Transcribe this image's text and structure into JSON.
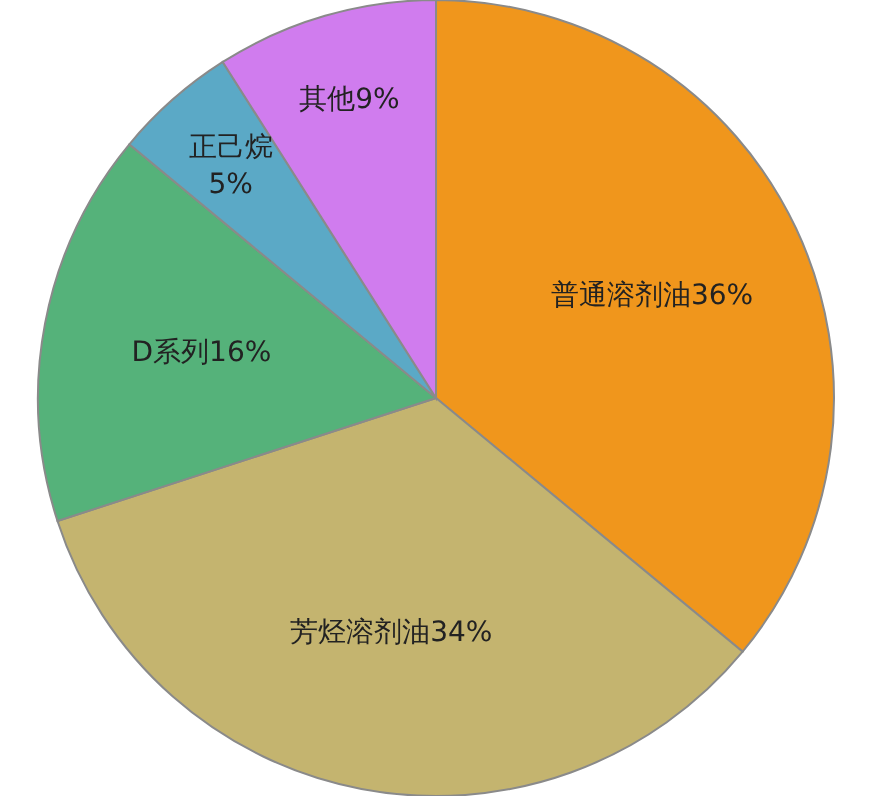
{
  "chart_data": {
    "type": "pie",
    "categories": [
      "普通溶剂油",
      "芳烃溶剂油",
      "D系列",
      "正己烷",
      "其他"
    ],
    "values": [
      36,
      34,
      16,
      5,
      9
    ],
    "value_labels": [
      "36%",
      "34%",
      "16%",
      "5%",
      "9%"
    ],
    "colors": [
      "#f0961c",
      "#c4b46f",
      "#55b27a",
      "#5ba9c6",
      "#d07cee"
    ],
    "legend": false
  }
}
